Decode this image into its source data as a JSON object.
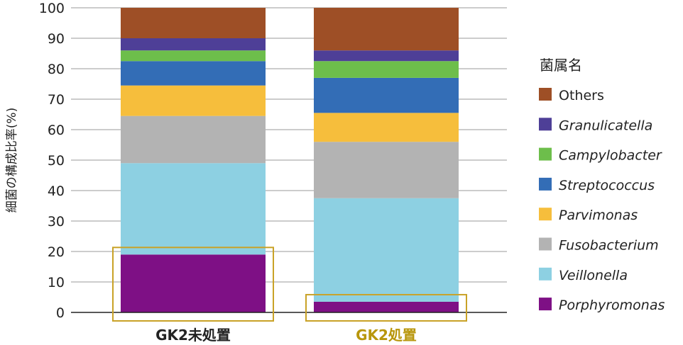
{
  "chart_data": {
    "type": "bar",
    "stacked": true,
    "ylabel": "細菌の構成比率(%)",
    "ylim": [
      0,
      100
    ],
    "yticks": [
      0,
      10,
      20,
      30,
      40,
      50,
      60,
      70,
      80,
      90,
      100
    ],
    "grid": true,
    "categories": [
      "GK2未処置",
      "GK2処置"
    ],
    "category_colors": [
      "#222222",
      "#B8960B"
    ],
    "highlight_series": "Porphyromonas",
    "highlight_color": "#C9A227",
    "legend": {
      "title": "菌属名",
      "position": "right"
    },
    "series": [
      {
        "name": "Porphyromonas",
        "color": "#7E1085",
        "italic": true,
        "values": [
          19,
          3.5
        ]
      },
      {
        "name": "Veillonella",
        "color": "#8DD0E2",
        "italic": true,
        "values": [
          30,
          34
        ]
      },
      {
        "name": "Fusobacterium",
        "color": "#B3B3B3",
        "italic": true,
        "values": [
          15.5,
          18.5
        ]
      },
      {
        "name": "Parvimonas",
        "color": "#F6BE3C",
        "italic": true,
        "values": [
          10,
          9.5
        ]
      },
      {
        "name": "Streptococcus",
        "color": "#336DB6",
        "italic": true,
        "values": [
          8,
          11.5
        ]
      },
      {
        "name": "Campylobacter",
        "color": "#6DBE4B",
        "italic": true,
        "values": [
          3.5,
          5.5
        ]
      },
      {
        "name": "Granulicatella",
        "color": "#4E3F97",
        "italic": true,
        "values": [
          4,
          3.5
        ]
      },
      {
        "name": "Others",
        "color": "#9E4F26",
        "italic": false,
        "values": [
          10,
          14
        ]
      }
    ]
  }
}
